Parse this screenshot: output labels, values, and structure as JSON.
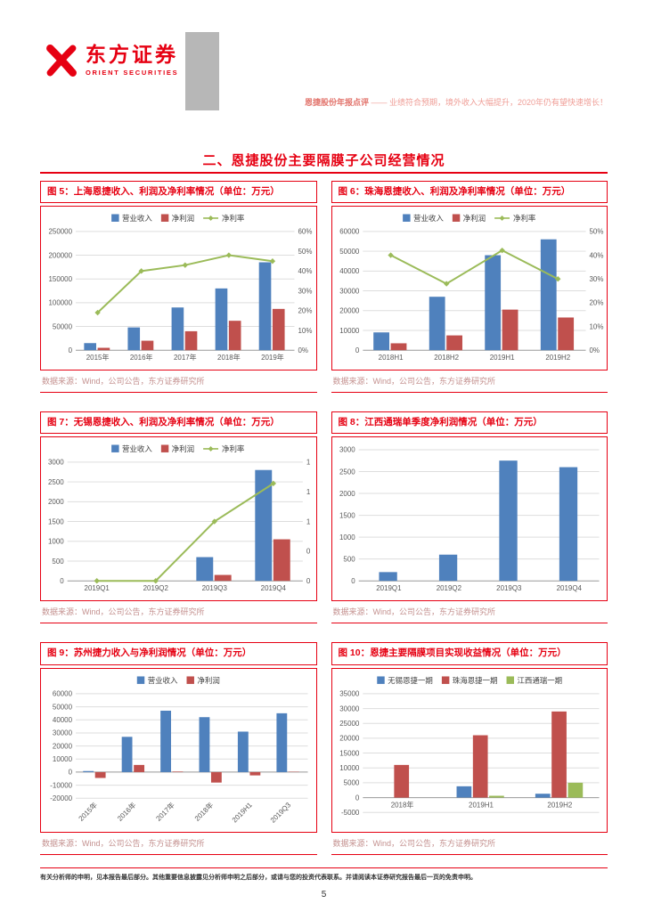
{
  "header": {
    "logo_cn": "东方证券",
    "logo_en": "ORIENT SECURITIES",
    "report_type": "恩捷股份年报点评",
    "title_rest": " —— 业绩符合预期，境外收入大幅提升，2020年仍有望快速增长！"
  },
  "section_title": "二、恩捷股份主要隔膜子公司经营情况",
  "source_label": "数据来源：Wind，公司公告，东方证券研究所",
  "footer": {
    "disclaimer": "有关分析师的申明，见本报告最后部分。其他重要信息披露见分析师申明之后部分，或请与您的投资代表联系。并请阅读本证券研究报告最后一页的免责申明。",
    "page_number": "5"
  },
  "colors": {
    "accent_red": "#e60012",
    "bar_blue": "#4F81BD",
    "bar_red": "#C0504D",
    "line_green": "#9BBB59"
  },
  "chart_data": [
    {
      "type": "bar",
      "title": "图 5：上海恩捷收入、利润及净利率情况（单位：万元）",
      "categories": [
        "2015年",
        "2016年",
        "2017年",
        "2018年",
        "2019年"
      ],
      "series": [
        {
          "name": "营业收入",
          "type": "bar",
          "color": "#4F81BD",
          "values": [
            15000,
            48000,
            90000,
            130000,
            185000
          ]
        },
        {
          "name": "净利润",
          "type": "bar",
          "color": "#C0504D",
          "values": [
            5000,
            20000,
            40000,
            62000,
            87000
          ]
        },
        {
          "name": "净利率",
          "type": "line",
          "axis": "right",
          "color": "#9BBB59",
          "values": [
            19,
            40,
            43,
            48,
            45
          ]
        }
      ],
      "left_axis": {
        "min": 0,
        "max": 250000,
        "tick_values": [
          0,
          50000,
          100000,
          150000,
          200000,
          250000
        ],
        "tick_labels": [
          "0",
          "50000",
          "100000",
          "150000",
          "200000",
          "250000"
        ]
      },
      "right_axis": {
        "min": 0,
        "max": 60,
        "tick_values": [
          0,
          10,
          20,
          30,
          40,
          50,
          60
        ],
        "tick_labels": [
          "0%",
          "10%",
          "20%",
          "30%",
          "40%",
          "50%",
          "60%"
        ]
      }
    },
    {
      "type": "bar",
      "title": "图 6：珠海恩捷收入、利润及净利率情况（单位：万元）",
      "categories": [
        "2018H1",
        "2018H2",
        "2019H1",
        "2019H2"
      ],
      "series": [
        {
          "name": "营业收入",
          "type": "bar",
          "color": "#4F81BD",
          "values": [
            9000,
            27000,
            48000,
            56000
          ]
        },
        {
          "name": "净利润",
          "type": "bar",
          "color": "#C0504D",
          "values": [
            3500,
            7500,
            20500,
            16500
          ]
        },
        {
          "name": "净利率",
          "type": "line",
          "axis": "right",
          "color": "#9BBB59",
          "values": [
            40,
            28,
            42,
            30
          ]
        }
      ],
      "left_axis": {
        "min": 0,
        "max": 60000,
        "tick_values": [
          0,
          10000,
          20000,
          30000,
          40000,
          50000,
          60000
        ],
        "tick_labels": [
          "0",
          "10000",
          "20000",
          "30000",
          "40000",
          "50000",
          "60000"
        ]
      },
      "right_axis": {
        "min": 0,
        "max": 50,
        "tick_values": [
          0,
          10,
          20,
          30,
          40,
          50
        ],
        "tick_labels": [
          "0%",
          "10%",
          "20%",
          "30%",
          "40%",
          "50%"
        ]
      }
    },
    {
      "type": "bar",
      "title": "图 7：无锡恩捷收入、利润及净利率情况（单位：万元）",
      "categories": [
        "2019Q1",
        "2019Q2",
        "2019Q3",
        "2019Q4"
      ],
      "series": [
        {
          "name": "营业收入",
          "type": "bar",
          "color": "#4F81BD",
          "values": [
            0,
            0,
            600,
            2800
          ]
        },
        {
          "name": "净利润",
          "type": "bar",
          "color": "#C0504D",
          "values": [
            0,
            0,
            150,
            1050
          ]
        },
        {
          "name": "净利率",
          "type": "line",
          "axis": "right",
          "color": "#9BBB59",
          "values": [
            0,
            0,
            0.5,
            0.82
          ]
        }
      ],
      "left_axis": {
        "min": 0,
        "max": 3000,
        "tick_values": [
          0,
          500,
          1000,
          1500,
          2000,
          2500,
          3000
        ],
        "tick_labels": [
          "0",
          "500",
          "1000",
          "1500",
          "2000",
          "2500",
          "3000"
        ]
      },
      "right_axis": {
        "min": 0,
        "max": 1,
        "tick_values": [
          0,
          0.25,
          0.5,
          0.75,
          1
        ],
        "tick_labels": [
          "0",
          "0",
          "1",
          "1",
          "1"
        ]
      }
    },
    {
      "type": "bar",
      "title": "图 8：江西通瑞单季度净利润情况（单位：万元）",
      "categories": [
        "2019Q1",
        "2019Q2",
        "2019Q3",
        "2019Q4"
      ],
      "legend": false,
      "series": [
        {
          "name": "净利润",
          "type": "bar",
          "color": "#4F81BD",
          "values": [
            200,
            600,
            2750,
            2600
          ]
        }
      ],
      "left_axis": {
        "min": 0,
        "max": 3000,
        "tick_values": [
          0,
          500,
          1000,
          1500,
          2000,
          2500,
          3000
        ],
        "tick_labels": [
          "0",
          "500",
          "1000",
          "1500",
          "2000",
          "2500",
          "3000"
        ]
      }
    },
    {
      "type": "bar",
      "title": "图 9：苏州捷力收入与净利润情况（单位：万元）",
      "categories": [
        "2015年",
        "2016年",
        "2017年",
        "2018年",
        "2019H1",
        "2019Q3"
      ],
      "rotate_x": true,
      "series": [
        {
          "name": "营业收入",
          "type": "bar",
          "color": "#4F81BD",
          "values": [
            800,
            27000,
            47000,
            42000,
            31000,
            45000
          ]
        },
        {
          "name": "净利润",
          "type": "bar",
          "color": "#C0504D",
          "values": [
            -4500,
            5500,
            400,
            -8000,
            -2500,
            300
          ]
        }
      ],
      "left_axis": {
        "min": -20000,
        "max": 60000,
        "tick_values": [
          -20000,
          -10000,
          0,
          10000,
          20000,
          30000,
          40000,
          50000,
          60000
        ],
        "tick_labels": [
          "-20000",
          "-10000",
          "0",
          "10000",
          "20000",
          "30000",
          "40000",
          "50000",
          "60000"
        ]
      }
    },
    {
      "type": "bar",
      "title": "图 10：恩捷主要隔膜项目实现收益情况（单位：万元）",
      "categories": [
        "2018年",
        "2019H1",
        "2019H2"
      ],
      "series": [
        {
          "name": "无锡恩捷一期",
          "type": "bar",
          "color": "#4F81BD",
          "values": [
            0,
            3800,
            1300
          ]
        },
        {
          "name": "珠海恩捷一期",
          "type": "bar",
          "color": "#C0504D",
          "values": [
            11000,
            21000,
            29000
          ]
        },
        {
          "name": "江西通瑞一期",
          "type": "bar",
          "color": "#9BBB59",
          "values": [
            0,
            600,
            5000
          ]
        }
      ],
      "left_axis": {
        "min": -5000,
        "max": 35000,
        "tick_values": [
          -5000,
          0,
          5000,
          10000,
          15000,
          20000,
          25000,
          30000,
          35000
        ],
        "tick_labels": [
          "-5000",
          "0",
          "5000",
          "10000",
          "15000",
          "20000",
          "25000",
          "30000",
          "35000"
        ]
      }
    }
  ]
}
